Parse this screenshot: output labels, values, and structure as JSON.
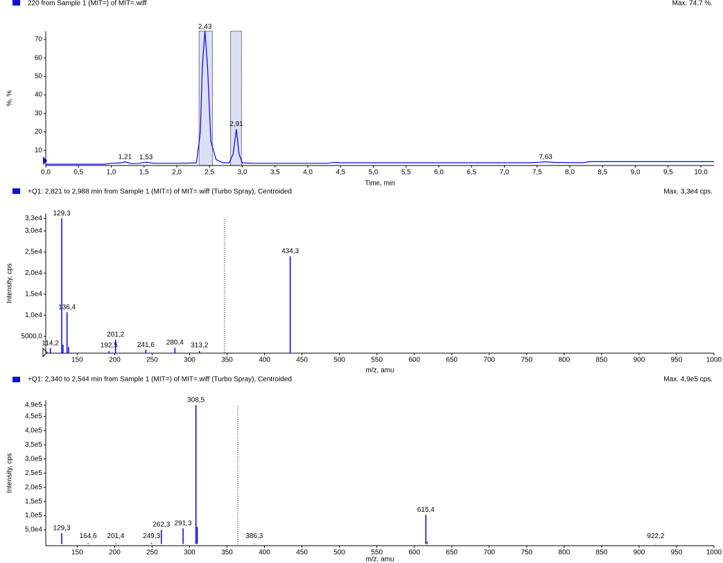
{
  "chart_data": [
    {
      "type": "line",
      "title": "220 from Sample 1 (MIT=) of MIT=.wiff",
      "max_label": "Max. 74,7 %.",
      "x_label": "Time, min",
      "y_label": "%, %",
      "color": "#0000ee",
      "x": [
        0,
        0.9,
        1.0,
        1.15,
        1.21,
        1.3,
        1.4,
        1.53,
        1.65,
        2.0,
        2.3,
        2.36,
        2.39,
        2.43,
        2.47,
        2.52,
        2.6,
        2.7,
        2.8,
        2.86,
        2.91,
        2.95,
        3.0,
        3.2,
        4.3,
        4.4,
        4.5,
        6.0,
        7.4,
        7.55,
        7.63,
        7.75,
        8.2,
        8.3,
        10.2
      ],
      "values": [
        2.5,
        2.5,
        3.0,
        3.2,
        3.8,
        2.8,
        2.9,
        3.6,
        3.0,
        3.0,
        3.2,
        20,
        55,
        74.7,
        55,
        15,
        5,
        3.3,
        3.2,
        8,
        21.5,
        8,
        3.2,
        3.0,
        3.0,
        3.5,
        3.3,
        3.3,
        3.3,
        3.6,
        3.8,
        3.5,
        3.3,
        3.9,
        3.9
      ],
      "peak_labels": [
        {
          "value": 1.21,
          "label": "1,21"
        },
        {
          "value": 1.53,
          "label": "1,53"
        },
        {
          "value": 2.43,
          "label": "2,43"
        },
        {
          "value": 2.91,
          "label": "2,91"
        },
        {
          "value": 7.63,
          "label": "7,63"
        }
      ],
      "highlights": [
        [
          2.34,
          2.544
        ],
        [
          2.821,
          2.988
        ]
      ],
      "xlim": [
        0,
        10.2
      ],
      "ylim": [
        1.8,
        74.5
      ],
      "xticks": [
        {
          "value": 0,
          "label": "0,0"
        },
        {
          "value": 0.5,
          "label": "0,5"
        },
        {
          "value": 1,
          "label": "1,0"
        },
        {
          "value": 1.5,
          "label": "1,5"
        },
        {
          "value": 2,
          "label": "2,0"
        },
        {
          "value": 2.5,
          "label": "2,5"
        },
        {
          "value": 3,
          "label": "3,0"
        },
        {
          "value": 3.5,
          "label": "3,5"
        },
        {
          "value": 4,
          "label": "4,0"
        },
        {
          "value": 4.5,
          "label": "4,5"
        },
        {
          "value": 5,
          "label": "5,0"
        },
        {
          "value": 5.5,
          "label": "5,5"
        },
        {
          "value": 6,
          "label": "6,0"
        },
        {
          "value": 6.5,
          "label": "6,5"
        },
        {
          "value": 7,
          "label": "7,0"
        },
        {
          "value": 7.5,
          "label": "7,5"
        },
        {
          "value": 8,
          "label": "8,0"
        },
        {
          "value": 8.5,
          "label": "8,5"
        },
        {
          "value": 9,
          "label": "9,0"
        },
        {
          "value": 9.5,
          "label": "9,5"
        },
        {
          "value": 10,
          "label": "10,0"
        }
      ],
      "yticks": [
        10,
        20,
        30,
        40,
        50,
        60,
        70
      ]
    },
    {
      "type": "bar",
      "title": "+Q1: 2,821 to 2,988 min from Sample 1 (MIT=) of MIT=.wiff (Turbo Spray), Centroided",
      "max_label": "Max. 3,3e4 cps.",
      "x_label": "m/z, amu",
      "y_label": "Intensity, cps",
      "color": "#0000ee",
      "x": [
        114.2,
        129.3,
        131.0,
        136.4,
        138.5,
        192.5,
        201.2,
        241.6,
        280.4,
        313.2,
        434.3
      ],
      "values": [
        2200,
        33000,
        3000,
        10700,
        2500,
        1500,
        4200,
        1800,
        2300,
        1500,
        24000
      ],
      "x_labels": [
        "114,2",
        "129,3",
        null,
        "136,4",
        null,
        "192,5",
        "201,2",
        "241,6",
        "280,4",
        "313,2",
        "434,3"
      ],
      "xlim": [
        108,
        1000
      ],
      "ylim": [
        1000,
        34200
      ],
      "xticks": [
        150,
        200,
        250,
        300,
        350,
        400,
        450,
        500,
        550,
        600,
        650,
        700,
        750,
        800,
        850,
        900,
        950,
        1000
      ],
      "yticks": [
        {
          "value": 5000,
          "label": "5000,0"
        },
        {
          "value": 10000,
          "label": "1,0e4"
        },
        {
          "value": 15000,
          "label": "1,5e4"
        },
        {
          "value": 20000,
          "label": "2,0e4"
        },
        {
          "value": 25000,
          "label": "2,5e4"
        },
        {
          "value": 30000,
          "label": "3,0e4"
        },
        {
          "value": 33000,
          "label": "3,3e4"
        }
      ]
    },
    {
      "type": "bar",
      "title": "+Q1: 2,340 to 2,544 min from Sample 1 (MIT=) of MIT=.wiff (Turbo Spray), Centroided",
      "max_label": "Max. 4,9e5 cps.",
      "x_label": "m/z, amu",
      "y_label": "Intensity, cps",
      "color": "#0000ee",
      "x": [
        129.3,
        164.6,
        201.4,
        249.3,
        262.3,
        291.3,
        308.5,
        310.2,
        386.3,
        615.4,
        617.2,
        922.2
      ],
      "values": [
        38000,
        3000,
        3000,
        4000,
        50000,
        55000,
        490000,
        60000,
        2000,
        103000,
        8000,
        1000
      ],
      "x_labels": [
        "129,3",
        "164,6",
        "201,4",
        "249,3",
        "262,3",
        "291,3",
        "308,5",
        null,
        "386,3",
        "615,4",
        null,
        "922,2"
      ],
      "xlim": [
        108,
        1000
      ],
      "ylim": [
        -6000,
        507000
      ],
      "xticks": [
        150,
        200,
        250,
        300,
        350,
        400,
        450,
        500,
        550,
        600,
        650,
        700,
        750,
        800,
        850,
        900,
        950,
        1000
      ],
      "yticks": [
        {
          "value": 50000,
          "label": "5,0e4"
        },
        {
          "value": 100000,
          "label": "1,0e5"
        },
        {
          "value": 150000,
          "label": "1,5e5"
        },
        {
          "value": 200000,
          "label": "2,0e5"
        },
        {
          "value": 250000,
          "label": "2,5e5"
        },
        {
          "value": 300000,
          "label": "3,0e5"
        },
        {
          "value": 350000,
          "label": "3,5e5"
        },
        {
          "value": 400000,
          "label": "4,0e5"
        },
        {
          "value": 450000,
          "label": "4,5e5"
        },
        {
          "value": 490000,
          "label": "4,9e5"
        }
      ]
    }
  ]
}
